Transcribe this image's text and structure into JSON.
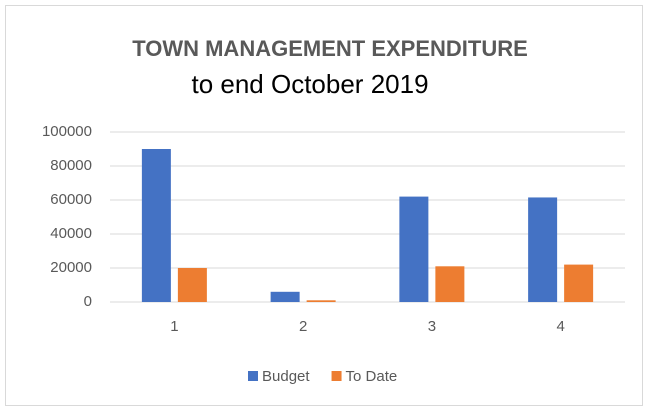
{
  "chart_data": {
    "type": "bar",
    "title": "TOWN MANAGEMENT EXPENDITURE",
    "subtitle": "to end October 2019",
    "categories": [
      "1",
      "2",
      "3",
      "4"
    ],
    "series": [
      {
        "name": "Budget",
        "color": "#4472c4",
        "values": [
          90000,
          6000,
          62000,
          61500
        ]
      },
      {
        "name": "To Date",
        "color": "#ed7d31",
        "values": [
          20000,
          1000,
          21000,
          22000
        ]
      }
    ],
    "ylim": [
      0,
      100000
    ],
    "yticks": [
      0,
      20000,
      40000,
      60000,
      80000,
      100000
    ],
    "grid": true,
    "legend": "bottom"
  }
}
